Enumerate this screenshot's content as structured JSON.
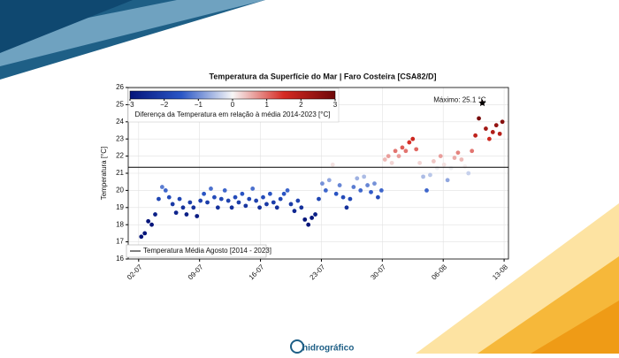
{
  "logo": "hidrográfico",
  "chart_data": {
    "type": "scatter",
    "title": "Temperatura da Superfície do Mar | Faro Costeira [CSA82/D]",
    "ylabel": "Temperatura [°C]",
    "x": [
      2.3,
      2.7,
      3.1,
      3.5,
      3.9,
      4.3,
      4.7,
      5.1,
      5.5,
      5.9,
      6.3,
      6.7,
      7.1,
      7.5,
      7.9,
      8.3,
      8.7,
      9.1,
      9.5,
      9.9,
      10.3,
      10.7,
      11.1,
      11.5,
      11.9,
      12.3,
      12.7,
      13.1,
      13.5,
      13.9,
      14.3,
      14.7,
      15.1,
      15.5,
      15.9,
      16.3,
      16.7,
      17.1,
      17.5,
      17.9,
      18.3,
      18.7,
      19.1,
      19.5,
      19.9,
      20.3,
      20.7,
      21.1,
      21.5,
      21.9,
      22.3,
      22.7,
      23.1,
      23.5,
      23.9,
      24.3,
      24.7,
      25.1,
      25.5,
      25.9,
      26.3,
      26.7,
      27.1,
      27.5,
      27.9,
      28.3,
      28.7,
      29.1,
      29.5,
      29.9,
      30.3,
      30.7,
      31.1,
      31.5,
      31.9,
      32.3,
      32.7,
      33.1,
      33.5,
      33.9,
      34.3,
      34.7,
      35.1,
      35.5,
      35.9,
      36.3,
      36.7,
      37.1,
      37.5,
      37.9,
      38.3,
      38.7,
      39.1,
      39.5,
      39.9,
      40.3,
      40.7,
      41.1,
      41.5,
      41.9,
      42.3,
      42.7,
      43.1,
      43.5,
      43.8
    ],
    "series": [
      {
        "name": "Temperatura",
        "values": [
          17.3,
          17.5,
          18.2,
          18.0,
          18.6,
          19.5,
          20.2,
          20.0,
          19.6,
          19.2,
          18.7,
          19.5,
          19.0,
          18.6,
          19.3,
          19.0,
          18.5,
          19.4,
          19.8,
          19.3,
          20.1,
          19.6,
          19.0,
          19.5,
          20.0,
          19.4,
          19.0,
          19.6,
          19.3,
          19.8,
          19.1,
          19.5,
          20.1,
          19.4,
          19.0,
          19.6,
          19.2,
          19.8,
          19.3,
          19.0,
          19.5,
          19.8,
          20.0,
          19.2,
          18.8,
          19.4,
          19.0,
          18.3,
          18.0,
          18.4,
          18.6,
          19.5,
          20.4,
          20.0,
          20.6,
          21.5,
          19.8,
          20.3,
          19.6,
          19.0,
          19.5,
          20.2,
          20.7,
          20.0,
          20.8,
          20.3,
          19.9,
          20.4,
          19.6,
          20.0,
          21.8,
          22.0,
          21.6,
          22.3,
          22.0,
          22.5,
          22.3,
          22.8,
          23.0,
          22.4,
          21.6,
          20.8,
          20.0,
          20.9,
          21.7,
          21.3,
          22.0,
          21.5,
          20.6,
          21.3,
          21.9,
          22.2,
          21.8,
          21.4,
          21.0,
          22.3,
          23.2,
          24.2,
          25.1,
          23.6,
          23.0,
          23.4,
          23.8,
          23.3,
          24.0
        ]
      }
    ],
    "reference": {
      "name": "Temperatura Média Agosto [2014 - 2023]",
      "value": 21.35,
      "color": "#000000"
    },
    "annotation": {
      "text": "Máximo: 25.1 °C",
      "x": 41.5,
      "y": 25.1
    },
    "colorbar": {
      "label": "Diferença da Temperatura em relação à média 2014-2023 [°C]",
      "clim": [
        -3,
        3
      ],
      "colormap": [
        "#05157a",
        "#2a56c6",
        "#f7f7f7",
        "#d62a22",
        "#6e0808"
      ],
      "ticks": [
        {
          "value": -3,
          "label": "−3"
        },
        {
          "value": -2,
          "label": "−2"
        },
        {
          "value": -1,
          "label": "−1"
        },
        0,
        1,
        2,
        3
      ]
    },
    "xlim": [
      0.8,
      44.5
    ],
    "xticks": [
      {
        "value": 2,
        "label": "02-07"
      },
      {
        "value": 9,
        "label": "09-07"
      },
      {
        "value": 16,
        "label": "16-07"
      },
      {
        "value": 23,
        "label": "23-07"
      },
      {
        "value": 30,
        "label": "30-07"
      },
      {
        "value": 37,
        "label": "06-08"
      },
      {
        "value": 44,
        "label": "13-08"
      }
    ],
    "ylim": [
      16,
      26
    ],
    "yticks": [
      16,
      17,
      18,
      19,
      20,
      21,
      22,
      23,
      24,
      25,
      26
    ],
    "grid": true
  }
}
